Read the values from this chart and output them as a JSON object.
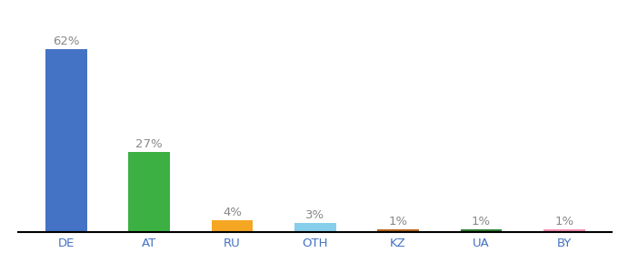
{
  "categories": [
    "DE",
    "AT",
    "RU",
    "OTH",
    "KZ",
    "UA",
    "BY"
  ],
  "values": [
    62,
    27,
    4,
    3,
    1,
    1,
    1
  ],
  "bar_colors": [
    "#4472c4",
    "#3cb043",
    "#f5a623",
    "#87ceeb",
    "#b5651d",
    "#2e7d32",
    "#f48fb1"
  ],
  "labels": [
    "62%",
    "27%",
    "4%",
    "3%",
    "1%",
    "1%",
    "1%"
  ],
  "ylim": [
    0,
    72
  ],
  "background_color": "#ffffff",
  "label_fontsize": 9.5,
  "tick_fontsize": 9.5,
  "tick_color": "#4472c4",
  "label_color": "#888888",
  "bar_width": 0.5
}
